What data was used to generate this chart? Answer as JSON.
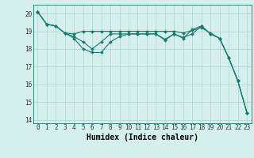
{
  "xlabel": "Humidex (Indice chaleur)",
  "background_color": "#d5efed",
  "grid_color": "#b8dbd8",
  "line_color": "#1a7a6e",
  "xlim": [
    -0.5,
    23.5
  ],
  "ylim": [
    13.8,
    20.5
  ],
  "yticks": [
    14,
    15,
    16,
    17,
    18,
    19,
    20
  ],
  "xticks": [
    0,
    1,
    2,
    3,
    4,
    5,
    6,
    7,
    8,
    9,
    10,
    11,
    12,
    13,
    14,
    15,
    16,
    17,
    18,
    19,
    20,
    21,
    22,
    23
  ],
  "series": [
    [
      20.1,
      19.4,
      19.3,
      18.9,
      18.6,
      18.0,
      17.8,
      17.8,
      18.4,
      18.7,
      18.85,
      18.85,
      18.85,
      18.85,
      18.5,
      18.85,
      18.6,
      19.1,
      19.3,
      18.85,
      18.6,
      17.5,
      16.2,
      14.4
    ],
    [
      20.1,
      19.4,
      19.3,
      18.9,
      18.85,
      19.0,
      19.0,
      19.0,
      19.0,
      19.0,
      19.0,
      19.0,
      19.0,
      19.0,
      19.0,
      19.0,
      18.9,
      19.05,
      19.2,
      18.9,
      18.6,
      17.5,
      16.2,
      14.4
    ],
    [
      20.1,
      19.4,
      19.3,
      18.9,
      18.7,
      18.4,
      18.0,
      18.4,
      18.85,
      18.85,
      18.85,
      18.85,
      18.85,
      18.85,
      18.55,
      18.85,
      18.65,
      18.85,
      19.3,
      18.85,
      18.6,
      17.5,
      16.2,
      14.4
    ]
  ],
  "font_family": "monospace",
  "tick_fontsize": 5.5,
  "label_fontsize": 7
}
